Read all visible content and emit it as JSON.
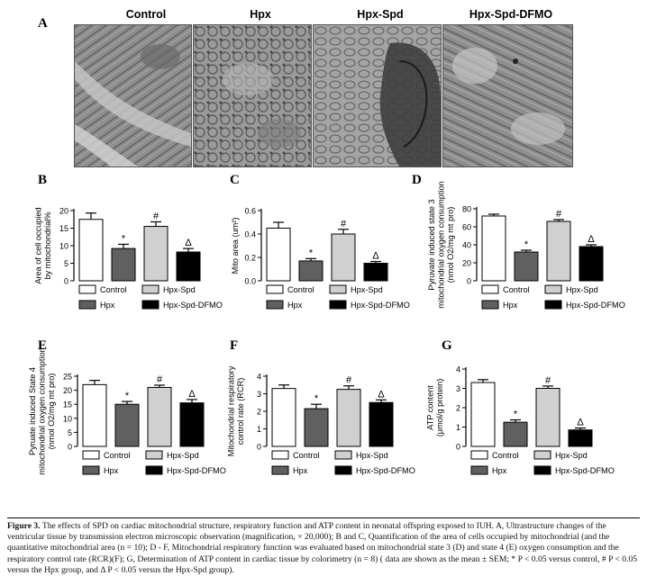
{
  "panel_a": {
    "letter": "A",
    "groups": [
      "Control",
      "Hpx",
      "Hpx-Spd",
      "Hpx-Spd-DFMO"
    ]
  },
  "legend": [
    "Control",
    "Hpx-Spd",
    "Hpx",
    "Hpx-Spd-DFMO"
  ],
  "colors": {
    "control": "#ffffff",
    "hpx": "#606060",
    "hpx_spd": "#d0d0d0",
    "hpx_spd_dfmo": "#000000"
  },
  "chart_data": [
    {
      "type": "bar",
      "letter": "B",
      "categories": [
        "Control",
        "Hpx",
        "Hpx-Spd",
        "Hpx-Spd-DFMO"
      ],
      "values": [
        17.5,
        9.2,
        15.5,
        8.2
      ],
      "errors": [
        1.8,
        1.2,
        1.3,
        1.0
      ],
      "marks": [
        "",
        "*",
        "#",
        "Δ"
      ],
      "ylabel": [
        "Area of cell occupied",
        "by mitochondrial%"
      ],
      "ylim": [
        0,
        20
      ],
      "ticks": [
        0,
        5,
        10,
        15,
        20
      ],
      "tick_labels": [
        "0",
        "5",
        "10",
        "15",
        "20"
      ]
    },
    {
      "type": "bar",
      "letter": "C",
      "categories": [
        "Control",
        "Hpx",
        "Hpx-Spd",
        "Hpx-Spd-DFMO"
      ],
      "values": [
        0.45,
        0.17,
        0.4,
        0.15
      ],
      "errors": [
        0.05,
        0.02,
        0.04,
        0.015
      ],
      "marks": [
        "",
        "*",
        "#",
        "Δ"
      ],
      "ylabel": [
        "Mito area (um²)"
      ],
      "ylim": [
        0,
        0.6
      ],
      "ticks": [
        0,
        0.2,
        0.4,
        0.6
      ],
      "tick_labels": [
        "0.0",
        "0.2",
        "0.4",
        "0.6"
      ]
    },
    {
      "type": "bar",
      "letter": "D",
      "categories": [
        "Control",
        "Hpx",
        "Hpx-Spd",
        "Hpx-Spd-DFMO"
      ],
      "values": [
        72,
        32,
        66,
        38
      ],
      "errors": [
        2,
        2,
        2,
        2
      ],
      "marks": [
        "",
        "*",
        "#",
        "Δ"
      ],
      "ylabel": [
        "Pyruvate induced state 3",
        "mitochondrial oxygen consumption",
        "(nmol O2/mg mt pro)"
      ],
      "ylim": [
        0,
        80
      ],
      "ticks": [
        0,
        20,
        40,
        60,
        80
      ],
      "tick_labels": [
        "0",
        "20",
        "40",
        "60",
        "80"
      ]
    },
    {
      "type": "bar",
      "letter": "E",
      "categories": [
        "Control",
        "Hpx",
        "Hpx-Spd",
        "Hpx-Spd-DFMO"
      ],
      "values": [
        22,
        15,
        21,
        15.5
      ],
      "errors": [
        1.5,
        1.0,
        0.8,
        1.2
      ],
      "marks": [
        "",
        "*",
        "#",
        "Δ"
      ],
      "ylabel": [
        "Pyruate induced State 4",
        "mitochondrial oxygen consumption",
        "(nmol O2/mg mt pro)"
      ],
      "ylim": [
        0,
        25
      ],
      "ticks": [
        0,
        5,
        10,
        15,
        20,
        25
      ],
      "tick_labels": [
        "0",
        "5",
        "10",
        "15",
        "20",
        "25"
      ]
    },
    {
      "type": "bar",
      "letter": "F",
      "categories": [
        "Control",
        "Hpx",
        "Hpx-Spd",
        "Hpx-Spd-DFMO"
      ],
      "values": [
        3.3,
        2.15,
        3.25,
        2.5
      ],
      "errors": [
        0.2,
        0.25,
        0.2,
        0.15
      ],
      "marks": [
        "",
        "*",
        "#",
        "Δ"
      ],
      "ylabel": [
        "Mitochondrial respiratory",
        "control rate (RCR)"
      ],
      "ylim": [
        0,
        4
      ],
      "ticks": [
        0,
        1,
        2,
        3,
        4
      ],
      "tick_labels": [
        "0",
        "1",
        "2",
        "3",
        "4"
      ]
    },
    {
      "type": "bar",
      "letter": "G",
      "categories": [
        "Control",
        "Hpx",
        "Hpx-Spd",
        "Hpx-Spd-DFMO"
      ],
      "values": [
        3.3,
        1.25,
        3.0,
        0.85
      ],
      "errors": [
        0.15,
        0.12,
        0.12,
        0.1
      ],
      "marks": [
        "",
        "*",
        "#",
        "Δ"
      ],
      "ylabel": [
        "ATP content",
        "(μmol/g protein)"
      ],
      "ylim": [
        0,
        4
      ],
      "ticks": [
        0,
        1,
        2,
        3,
        4
      ],
      "tick_labels": [
        "0",
        "1",
        "2",
        "3",
        "4"
      ]
    }
  ],
  "caption": {
    "label": "Figure 3.",
    "text": "The effects of SPD on cardiac mitochondrial structure, respiratory function and ATP content in neonatal offspring exposed to IUH. A, Ultrastructure changes of the ventricular tissue by transmission electron microscopic observation (magnification, × 20,000); B and C, Quantification of the area of cells occupied by mitochondrial (and the quantitative mitochondrial area (n = 10); D - F, Mitochondrial respiratory function was evaluated based on mitochondrial state 3 (D) and state 4 (E) oxygen consumption and the respiratory control rate (RCR)(F); G, Determination of ATP content in cardiac tissue by colorimetry (n = 8) ( data are shown as the mean ± SEM; * P < 0.05 versus control, # P < 0.05 versus the Hpx group, and Δ P < 0.05 versus the Hpx-Spd group)."
  }
}
